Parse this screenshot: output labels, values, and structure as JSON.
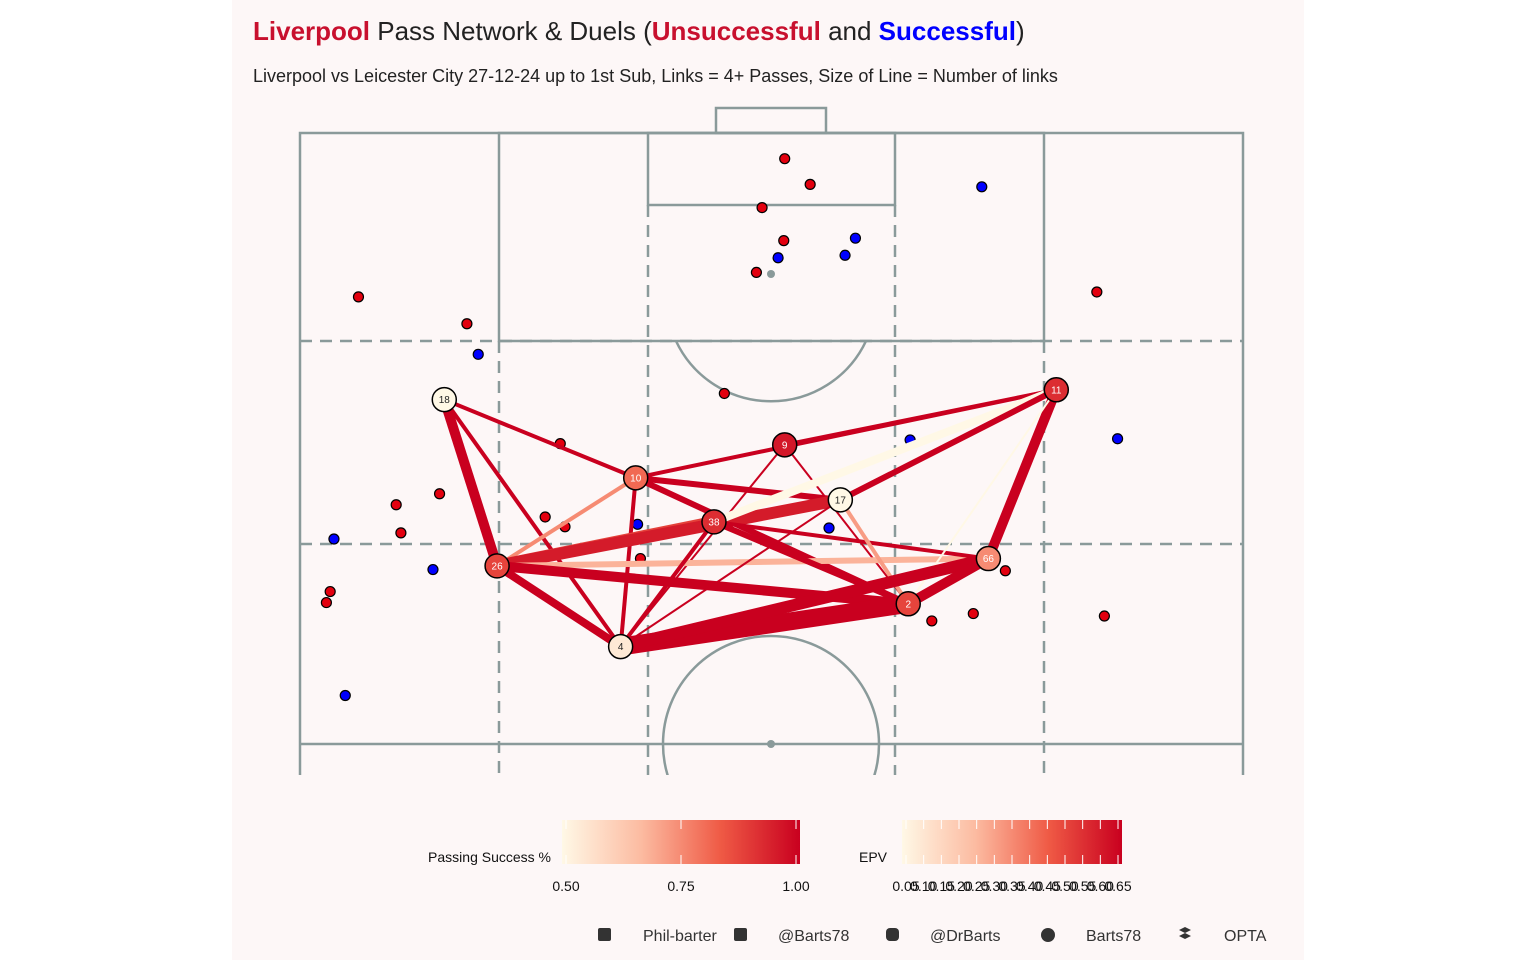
{
  "chart_data": {
    "type": "pass-network",
    "title": [
      {
        "text": "Liverpool",
        "color": "#c8102e",
        "bold": true
      },
      {
        "text": " Pass Network & Duels (",
        "color": "#222222",
        "bold": false
      },
      {
        "text": "Unsuccessful",
        "color": "#c8102e",
        "bold": true
      },
      {
        "text": " and ",
        "color": "#222222",
        "bold": false
      },
      {
        "text": "Successful",
        "color": "#0000ff",
        "bold": true
      },
      {
        "text": ")",
        "color": "#222222",
        "bold": false
      }
    ],
    "subtitle": "Liverpool vs Leicester City 27-12-24 up to 1st Sub, Links = 4+ Passes, Size of Line = Number of links",
    "xlim": [
      0,
      100
    ],
    "ylim": [
      47.5,
      100
    ],
    "scale_colors": [
      "#fff8e6",
      "#fcbba1",
      "#ef5a45",
      "#c9001f"
    ],
    "players": [
      {
        "label": "18",
        "x": 15.3,
        "y": 78.2,
        "epv": 0.05
      },
      {
        "label": "10",
        "x": 35.6,
        "y": 71.8,
        "epv": 0.42
      },
      {
        "label": "9",
        "x": 51.4,
        "y": 74.5,
        "epv": 0.6
      },
      {
        "label": "11",
        "x": 80.2,
        "y": 79.0,
        "epv": 0.55
      },
      {
        "label": "17",
        "x": 57.3,
        "y": 70.0,
        "epv": 0.05
      },
      {
        "label": "38",
        "x": 43.9,
        "y": 68.2,
        "epv": 0.55
      },
      {
        "label": "66",
        "x": 73.0,
        "y": 65.2,
        "epv": 0.35
      },
      {
        "label": "26",
        "x": 20.9,
        "y": 64.6,
        "epv": 0.5
      },
      {
        "label": "2",
        "x": 64.5,
        "y": 61.5,
        "epv": 0.5
      },
      {
        "label": "4",
        "x": 34.0,
        "y": 58.0,
        "epv": 0.1
      }
    ],
    "links": [
      {
        "from": "18",
        "to": "10",
        "count": 5,
        "success": 1.0
      },
      {
        "from": "18",
        "to": "26",
        "count": 8,
        "success": 1.0
      },
      {
        "from": "18",
        "to": "4",
        "count": 5,
        "success": 1.0
      },
      {
        "from": "10",
        "to": "11",
        "count": 5,
        "success": 1.0
      },
      {
        "from": "10",
        "to": "17",
        "count": 6,
        "success": 1.0
      },
      {
        "from": "10",
        "to": "2",
        "count": 6,
        "success": 1.0
      },
      {
        "from": "10",
        "to": "26",
        "count": 5,
        "success": 0.75
      },
      {
        "from": "10",
        "to": "4",
        "count": 5,
        "success": 1.0
      },
      {
        "from": "9",
        "to": "11",
        "count": 5,
        "success": 1.0
      },
      {
        "from": "9",
        "to": "2",
        "count": 4,
        "success": 1.0
      },
      {
        "from": "9",
        "to": "4",
        "count": 4,
        "success": 1.0
      },
      {
        "from": "26",
        "to": "38",
        "count": 9,
        "success": 0.88
      },
      {
        "from": "26",
        "to": "17",
        "count": 9,
        "success": 0.95
      },
      {
        "from": "26",
        "to": "66",
        "count": 6,
        "success": 0.68
      },
      {
        "from": "26",
        "to": "2",
        "count": 8,
        "success": 1.0
      },
      {
        "from": "26",
        "to": "4",
        "count": 7,
        "success": 1.0
      },
      {
        "from": "38",
        "to": "2",
        "count": 6,
        "success": 1.0
      },
      {
        "from": "38",
        "to": "4",
        "count": 5,
        "success": 1.0
      },
      {
        "from": "38",
        "to": "66",
        "count": 5,
        "success": 1.0
      },
      {
        "from": "38",
        "to": "11",
        "count": 7,
        "success": 0.5
      },
      {
        "from": "17",
        "to": "2",
        "count": 5,
        "success": 0.72
      },
      {
        "from": "17",
        "to": "4",
        "count": 4,
        "success": 1.0
      },
      {
        "from": "11",
        "to": "66",
        "count": 8,
        "success": 1.0
      },
      {
        "from": "11",
        "to": "17",
        "count": 6,
        "success": 1.0
      },
      {
        "from": "11",
        "to": "2",
        "count": 4,
        "success": 0.5
      },
      {
        "from": "4",
        "to": "2",
        "count": 12,
        "success": 1.0
      },
      {
        "from": "4",
        "to": "66",
        "count": 9,
        "success": 1.0
      },
      {
        "from": "2",
        "to": "66",
        "count": 8,
        "success": 1.0
      }
    ],
    "duels": [
      {
        "color": "#e3000f",
        "x": [
          51.4,
          54.1,
          49.0,
          51.3,
          48.4,
          6.2,
          17.7,
          84.5,
          45.0,
          27.6,
          10.2,
          14.8,
          26.0,
          28.1,
          10.7,
          36.1,
          3.2,
          2.8,
          74.8,
          67.0,
          71.4,
          85.3
        ],
        "y": [
          97.9,
          95.8,
          93.9,
          91.2,
          88.6,
          86.6,
          84.4,
          87.0,
          78.7,
          74.6,
          69.6,
          70.5,
          68.6,
          67.8,
          67.3,
          65.2,
          62.5,
          61.6,
          64.2,
          60.1,
          60.7,
          60.5
        ]
      },
      {
        "color": "#0000ff",
        "x": [
          72.3,
          58.9,
          50.7,
          57.8,
          18.9,
          64.7,
          86.7,
          35.8,
          56.1,
          3.6,
          14.1,
          4.8
        ],
        "y": [
          95.6,
          91.4,
          89.8,
          90.0,
          81.9,
          74.9,
          75.0,
          68.0,
          67.7,
          66.8,
          64.3,
          54.0
        ]
      }
    ],
    "legend_success": {
      "title": "Passing Success %",
      "lim": [
        0.5,
        1.0
      ],
      "ticks": [
        {
          "value": 0.5,
          "label": "0.50"
        },
        0.75,
        {
          "value": 1.0,
          "label": "1.00"
        }
      ]
    },
    "legend_epv": {
      "title": "EPV",
      "lim": [
        0.05,
        0.65
      ],
      "ticks": [
        0.05,
        {
          "value": 0.1,
          "label": "0.10"
        },
        0.15,
        {
          "value": 0.2,
          "label": "0.20"
        },
        0.25,
        {
          "value": 0.3,
          "label": "0.30"
        },
        0.35,
        {
          "value": 0.4,
          "label": "0.40"
        },
        0.45,
        {
          "value": 0.5,
          "label": "0.50"
        },
        0.55,
        {
          "value": 0.6,
          "label": "0.60"
        },
        0.65
      ]
    },
    "credits": [
      "Phil-barter",
      "@Barts78",
      "@DrBarts",
      "Barts78",
      "OPTA"
    ]
  }
}
